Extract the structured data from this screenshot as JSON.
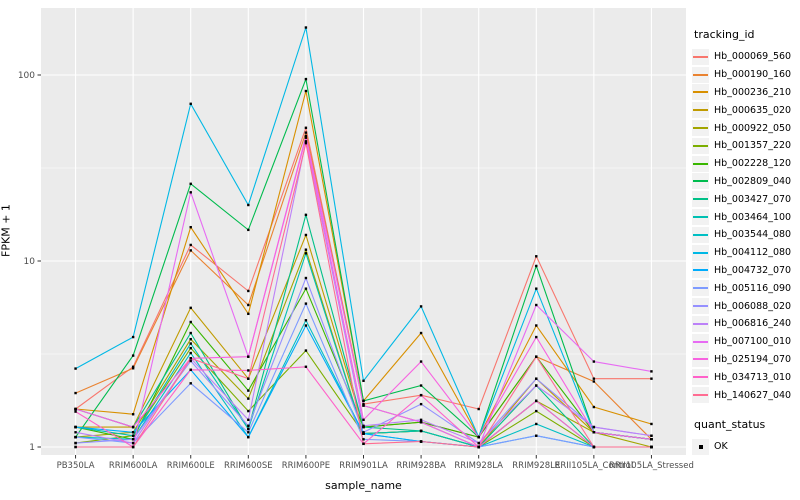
{
  "figure": {
    "background": "#FFFFFF",
    "panel_background": "#EBEBEB",
    "gridline_color": "#FFFFFF",
    "axis_text_color": "#4D4D4D",
    "tick_color": "#333333",
    "point_color": "#000000"
  },
  "legend": {
    "tracking_title": "tracking_id",
    "quant_title": "quant_status",
    "quant_ok_label": "OK",
    "key_background": "#F2F2F2"
  },
  "chart_data": {
    "type": "line",
    "title": "",
    "xlabel": "sample_name",
    "ylabel": "FPKM + 1",
    "y_scale": "log10",
    "ylim": [
      0.91,
      229
    ],
    "y_ticks": [
      1,
      10,
      100
    ],
    "y_tick_labels": [
      "1",
      "10",
      "100"
    ],
    "y_minor_ticks": [
      3.162,
      31.62
    ],
    "grid": true,
    "legend_position": "right",
    "point_marker": "black square (quant_status OK)",
    "categories": [
      "PB350LA",
      "RRIM600LA",
      "RRIM600LE",
      "RRIM600SE",
      "RRIM600PE",
      "RRIM901LA",
      "RRIM928BA",
      "RRIM928LA",
      "RRIM928LE",
      "RRII105LA_Control",
      "RRII105LA_Stressed"
    ],
    "series": [
      {
        "name": "Hb_000069_560",
        "color": "#F8766D",
        "values": [
          1.6,
          2.7,
          12.2,
          6.9,
          52,
          1.7,
          1.9,
          1.6,
          10.6,
          2.33,
          2.33
        ]
      },
      {
        "name": "Hb_000190_160",
        "color": "#EA8331",
        "values": [
          1.95,
          2.65,
          11.4,
          5.8,
          49,
          1.67,
          1.36,
          1.13,
          3.06,
          2.25,
          1.1
        ]
      },
      {
        "name": "Hb_000236_210",
        "color": "#D89000",
        "values": [
          1.6,
          1.5,
          15.2,
          5.2,
          82,
          1.77,
          4.1,
          1.13,
          4.5,
          1.64,
          1.33
        ]
      },
      {
        "name": "Hb_000635_020",
        "color": "#C09B00",
        "values": [
          1.28,
          1.28,
          5.6,
          2.33,
          13.8,
          1.28,
          1.36,
          1.0,
          2.33,
          1.2,
          1.1
        ]
      },
      {
        "name": "Hb_000922_050",
        "color": "#A3A500",
        "values": [
          1.13,
          1.2,
          3.8,
          1.82,
          11.5,
          1.18,
          1.22,
          1.0,
          1.77,
          1.2,
          1.0
        ]
      },
      {
        "name": "Hb_001357_220",
        "color": "#7CAE00",
        "values": [
          1.05,
          1.15,
          3.4,
          1.56,
          3.3,
          1.18,
          1.22,
          1.0,
          1.56,
          1.0,
          1.0
        ]
      },
      {
        "name": "Hb_002228_120",
        "color": "#39B600",
        "values": [
          1.28,
          1.1,
          4.7,
          2.01,
          7.1,
          1.28,
          1.36,
          1.13,
          3.06,
          1.2,
          1.1
        ]
      },
      {
        "name": "Hb_002809_040",
        "color": "#00BB4E",
        "values": [
          1.13,
          3.1,
          26,
          14.7,
          95,
          1.77,
          2.14,
          1.13,
          9.4,
          1.2,
          1.1
        ]
      },
      {
        "name": "Hb_003427_070",
        "color": "#00C087",
        "values": [
          1.6,
          1.28,
          4.1,
          1.25,
          17.7,
          1.28,
          1.22,
          1.0,
          2.14,
          1.0,
          1.0
        ]
      },
      {
        "name": "Hb_003464_100",
        "color": "#00C0B2",
        "values": [
          1.28,
          1.15,
          3.6,
          1.25,
          11.0,
          1.18,
          1.22,
          1.0,
          1.77,
          1.0,
          1.0
        ]
      },
      {
        "name": "Hb_003544_080",
        "color": "#00BFC4",
        "values": [
          1.13,
          1.1,
          3.2,
          1.13,
          4.8,
          1.18,
          1.07,
          1.0,
          1.33,
          1.0,
          1.0
        ]
      },
      {
        "name": "Hb_004112_080",
        "color": "#00B8E5",
        "values": [
          2.64,
          3.9,
          70,
          20,
          180,
          2.27,
          5.7,
          1.13,
          7.1,
          1.2,
          1.1
        ]
      },
      {
        "name": "Hb_004732_070",
        "color": "#00ACFC",
        "values": [
          1.28,
          1.2,
          2.6,
          1.13,
          4.5,
          1.18,
          1.07,
          1.0,
          1.15,
          1.0,
          1.0
        ]
      },
      {
        "name": "Hb_005116_090",
        "color": "#7E9BFF",
        "values": [
          1.13,
          1.05,
          2.2,
          1.2,
          5.9,
          1.1,
          1.07,
          1.0,
          1.15,
          1.0,
          1.0
        ]
      },
      {
        "name": "Hb_006088_020",
        "color": "#9590FF",
        "values": [
          1.05,
          1.1,
          2.9,
          1.3,
          8.1,
          1.2,
          1.7,
          1.05,
          2.33,
          1.28,
          1.15
        ]
      },
      {
        "name": "Hb_006816_240",
        "color": "#BC81F8",
        "values": [
          1.2,
          1.05,
          3.0,
          1.4,
          44,
          1.3,
          1.4,
          1.05,
          2.14,
          1.28,
          1.15
        ]
      },
      {
        "name": "Hb_007100_010",
        "color": "#E76BF3",
        "values": [
          1.0,
          1.0,
          23.4,
          3.06,
          47,
          1.67,
          1.36,
          1.0,
          5.8,
          2.88,
          2.55
        ]
      },
      {
        "name": "Hb_025194_070",
        "color": "#F763E0",
        "values": [
          1.6,
          1.28,
          3.0,
          3.06,
          46,
          1.4,
          2.88,
          1.13,
          3.9,
          1.2,
          1.1
        ]
      },
      {
        "name": "Hb_034713_010",
        "color": "#FF61C9",
        "values": [
          1.55,
          1.0,
          2.6,
          2.58,
          2.7,
          1.04,
          1.9,
          1.0,
          1.77,
          1.0,
          1.0
        ]
      },
      {
        "name": "Hb_140627_040",
        "color": "#FF6C92",
        "values": [
          1.0,
          1.0,
          3.0,
          2.33,
          43,
          1.04,
          1.07,
          1.0,
          3.06,
          1.0,
          1.0
        ]
      }
    ]
  }
}
